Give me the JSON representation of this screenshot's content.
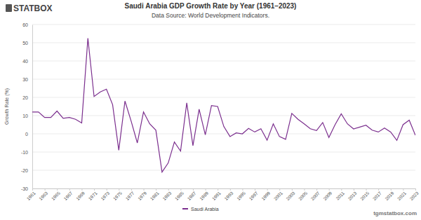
{
  "chart_data": {
    "type": "line",
    "title": "Saudi Arabia GDP Growth Rate by Year (1961–2023)",
    "subtitle": "Data Source: World Development Indicators.",
    "y_label": "Growth Rate (%)",
    "annotations": [
      "STATBOX",
      "tgmstatbox.com"
    ],
    "x": [
      1961,
      1962,
      1963,
      1964,
      1965,
      1966,
      1967,
      1968,
      1969,
      1970,
      1971,
      1972,
      1973,
      1974,
      1975,
      1976,
      1977,
      1978,
      1979,
      1980,
      1981,
      1982,
      1983,
      1984,
      1985,
      1986,
      1987,
      1988,
      1989,
      1990,
      1991,
      1992,
      1993,
      1994,
      1995,
      1996,
      1997,
      1998,
      1999,
      2000,
      2001,
      2002,
      2003,
      2004,
      2005,
      2006,
      2007,
      2008,
      2009,
      2010,
      2011,
      2012,
      2013,
      2014,
      2015,
      2016,
      2017,
      2018,
      2019,
      2020,
      2021,
      2022,
      2023
    ],
    "series": [
      {
        "name": "Saudi Arabia",
        "color": "#7b2f8e",
        "values": [
          12,
          12,
          9,
          9,
          12.5,
          8.5,
          9,
          8,
          6,
          52.5,
          20.5,
          23,
          24.5,
          16,
          -9,
          18,
          7,
          -5,
          12,
          5.5,
          2,
          -21,
          -16,
          -4.5,
          -9.5,
          17,
          -6.5,
          13.5,
          -0.5,
          15.5,
          15,
          4,
          -1.5,
          0.5,
          0,
          3,
          1,
          2.8,
          -3.5,
          5.5,
          -1.5,
          -3,
          11.2,
          8,
          5.5,
          2.8,
          1.8,
          6.2,
          -2,
          5,
          11,
          5.5,
          2.7,
          3.7,
          4.7,
          2,
          1,
          3.2,
          1,
          -3.6,
          5,
          7.5,
          -0.8
        ]
      }
    ],
    "xlim": [
      1961,
      2023
    ],
    "xticks": [
      1961,
      1963,
      1965,
      1967,
      1969,
      1971,
      1973,
      1975,
      1977,
      1979,
      1981,
      1983,
      1985,
      1987,
      1989,
      1991,
      1993,
      1995,
      1997,
      1999,
      2001,
      2003,
      2005,
      2007,
      2009,
      2011,
      2013,
      2015,
      2017,
      2019,
      2021,
      2023
    ],
    "ylim": [
      -30,
      60
    ],
    "yticks": [
      -30,
      -20,
      -10,
      0,
      10,
      20,
      30,
      40,
      50,
      60
    ],
    "grid": true,
    "legend": "bottom"
  }
}
